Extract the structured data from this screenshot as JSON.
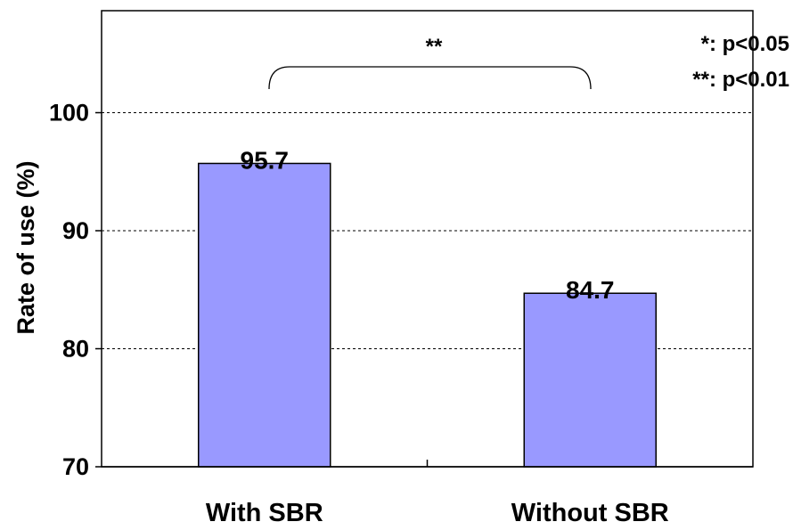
{
  "chart_data": {
    "type": "bar",
    "categories": [
      "With SBR",
      "Without SBR"
    ],
    "values": [
      95.7,
      84.7
    ],
    "value_labels": [
      "95.7",
      "84.7"
    ],
    "title": "",
    "xlabel": "",
    "ylabel": "Rate of use (%)",
    "ylim": [
      70,
      100
    ],
    "yticks": [
      70,
      80,
      90,
      100
    ],
    "ytick_labels": [
      "70",
      "80",
      "90",
      "100"
    ],
    "grid": true,
    "bar_color": "#9999ff",
    "significance": {
      "bracket_label": "**",
      "between": [
        "With SBR",
        "Without SBR"
      ]
    },
    "legend": {
      "placement": "top-right",
      "entries": [
        "*: p<0.05",
        "**: p<0.01"
      ]
    }
  }
}
